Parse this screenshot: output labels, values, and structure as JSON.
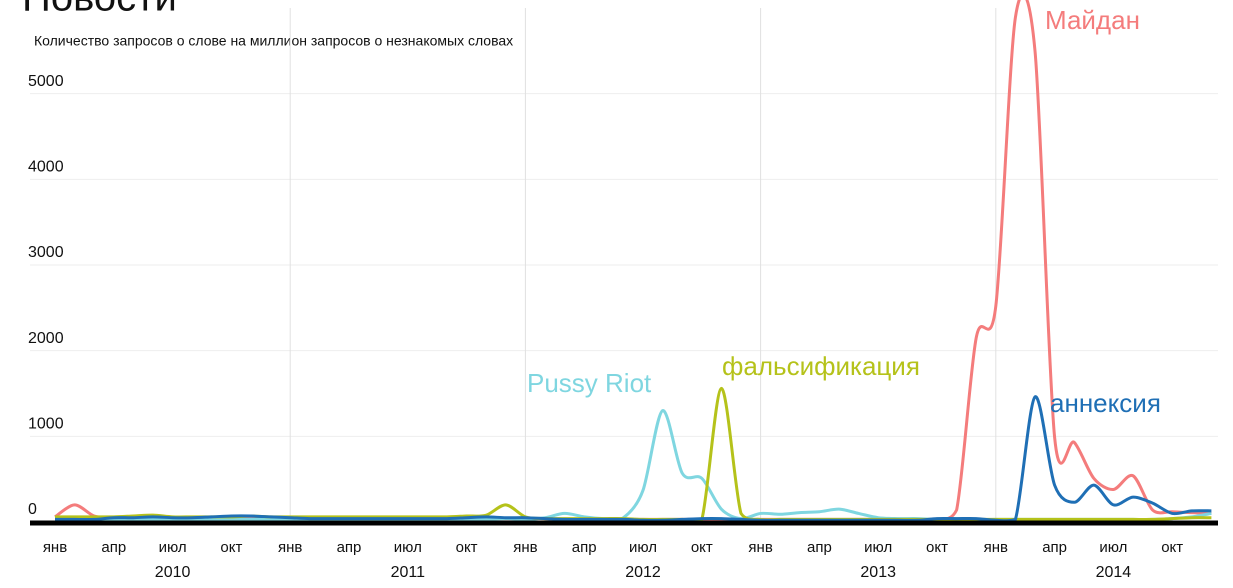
{
  "chart_data": {
    "type": "line",
    "title": "Новости",
    "subtitle": "Количество запросов о слове на миллион запросов о незнакомых словах",
    "categories": [
      "янв",
      null,
      null,
      "апр",
      null,
      null,
      "июл",
      null,
      null,
      "окт",
      null,
      null,
      "янв",
      null,
      null,
      "апр",
      null,
      null,
      "июл",
      null,
      null,
      "окт",
      null,
      null,
      "янв",
      null,
      null,
      "апр",
      null,
      null,
      "июл",
      null,
      null,
      "окт",
      null,
      null,
      "янв",
      null,
      null,
      "апр",
      null,
      null,
      "июл",
      null,
      null,
      "окт",
      null,
      null,
      "янв",
      null,
      null,
      "апр",
      null,
      null,
      "июл",
      null,
      null,
      "окт",
      null,
      null
    ],
    "years": [
      "2010",
      "2011",
      "2012",
      "2013",
      "2014"
    ],
    "ylim": [
      0,
      6000
    ],
    "yticks": [
      0,
      1000,
      2000,
      3000,
      4000,
      5000
    ],
    "grid": true,
    "series": [
      {
        "name": "Майдан",
        "color": "#f47c7c",
        "values": [
          60,
          200,
          70,
          50,
          50,
          50,
          50,
          50,
          50,
          50,
          50,
          50,
          50,
          50,
          40,
          40,
          40,
          40,
          40,
          40,
          40,
          40,
          40,
          40,
          40,
          40,
          30,
          30,
          30,
          30,
          30,
          30,
          30,
          30,
          30,
          30,
          30,
          30,
          30,
          30,
          30,
          30,
          30,
          30,
          30,
          30,
          140,
          2150,
          2520,
          5890,
          5500,
          990,
          930,
          510,
          380,
          540,
          140,
          120,
          110,
          100
        ]
      },
      {
        "name": "Pussy Riot",
        "color": "#7fd6e0",
        "values": [
          30,
          30,
          30,
          30,
          30,
          30,
          30,
          30,
          30,
          30,
          30,
          30,
          30,
          30,
          30,
          30,
          30,
          30,
          30,
          30,
          30,
          30,
          30,
          40,
          30,
          50,
          100,
          60,
          40,
          50,
          370,
          1300,
          570,
          510,
          150,
          40,
          100,
          90,
          110,
          120,
          150,
          100,
          50,
          40,
          40,
          30,
          40,
          30,
          30,
          30,
          30,
          30,
          30,
          30,
          30,
          30,
          30,
          40,
          60,
          100
        ]
      },
      {
        "name": "фальсификация",
        "color": "#b5c21a",
        "values": [
          60,
          60,
          60,
          60,
          70,
          80,
          60,
          60,
          60,
          60,
          70,
          60,
          60,
          60,
          60,
          60,
          60,
          60,
          60,
          60,
          60,
          70,
          80,
          200,
          60,
          40,
          40,
          40,
          40,
          40,
          30,
          30,
          30,
          30,
          1560,
          100,
          30,
          30,
          30,
          30,
          30,
          30,
          30,
          30,
          30,
          30,
          30,
          30,
          30,
          30,
          30,
          30,
          30,
          30,
          30,
          30,
          30,
          40,
          50,
          50
        ]
      },
      {
        "name": "аннексия",
        "color": "#1f6fb5",
        "values": [
          30,
          30,
          30,
          50,
          50,
          60,
          50,
          50,
          60,
          70,
          70,
          60,
          50,
          40,
          40,
          40,
          40,
          40,
          40,
          40,
          40,
          50,
          60,
          50,
          50,
          40,
          30,
          30,
          30,
          30,
          20,
          20,
          30,
          40,
          40,
          30,
          20,
          20,
          20,
          20,
          20,
          20,
          20,
          20,
          20,
          40,
          40,
          40,
          20,
          30,
          1460,
          430,
          230,
          430,
          200,
          290,
          220,
          100,
          130,
          130
        ]
      }
    ]
  }
}
